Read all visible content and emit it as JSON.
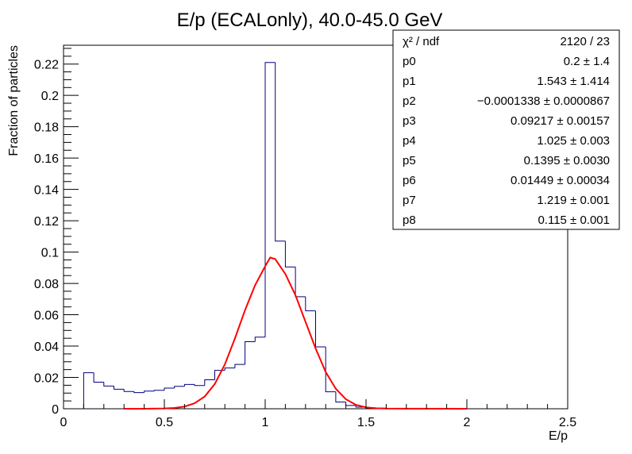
{
  "chart_data": {
    "type": "bar",
    "title": "E/p (ECALonly), 40.0-45.0 GeV",
    "xlabel": "E/p",
    "ylabel": "Fraction of particles",
    "xlim": [
      0,
      2.5
    ],
    "ylim": [
      0,
      0.232
    ],
    "grid": false,
    "legend": "none",
    "x_ticks": [
      "0",
      "0.5",
      "1",
      "1.5",
      "2",
      "2.5"
    ],
    "y_ticks": [
      "0",
      "0.02",
      "0.04",
      "0.06",
      "0.08",
      "0.1",
      "0.12",
      "0.14",
      "0.16",
      "0.18",
      "0.2",
      "0.22"
    ],
    "histogram": {
      "name": "histogram",
      "color": "#000080",
      "bin_edges": [
        0.1,
        0.15,
        0.2,
        0.25,
        0.3,
        0.35,
        0.4,
        0.45,
        0.5,
        0.55,
        0.6,
        0.65,
        0.7,
        0.75,
        0.8,
        0.85,
        0.9,
        0.95,
        1.0,
        1.05,
        1.1,
        1.15,
        1.2,
        1.25,
        1.3,
        1.35,
        1.4,
        1.45,
        1.5,
        1.55,
        1.6,
        1.65,
        1.7,
        1.75,
        1.8,
        1.85,
        1.9,
        1.95,
        2.0
      ],
      "values": [
        0.023,
        0.017,
        0.0145,
        0.0125,
        0.011,
        0.0103,
        0.0113,
        0.0118,
        0.0132,
        0.0143,
        0.0155,
        0.0148,
        0.0185,
        0.0245,
        0.026,
        0.0283,
        0.0428,
        0.0457,
        0.221,
        0.107,
        0.0905,
        0.0715,
        0.0625,
        0.0395,
        0.0108,
        0.0043,
        0.0021,
        0.001,
        0.0006,
        0.0004,
        0.0002,
        0.0001,
        5e-05,
        0,
        0,
        0,
        0,
        0
      ]
    },
    "fit": {
      "name": "fit",
      "color": "#ff0000",
      "x": [
        0.3,
        0.4,
        0.5,
        0.55,
        0.6,
        0.65,
        0.7,
        0.75,
        0.8,
        0.85,
        0.9,
        0.95,
        1.0,
        1.025,
        1.05,
        1.1,
        1.15,
        1.2,
        1.25,
        1.3,
        1.35,
        1.4,
        1.45,
        1.5,
        1.55,
        1.6,
        2.0
      ],
      "y": [
        0,
        0,
        0.0002,
        0.0005,
        0.0014,
        0.0035,
        0.0078,
        0.0158,
        0.0283,
        0.0449,
        0.0629,
        0.0789,
        0.091,
        0.0965,
        0.0955,
        0.086,
        0.0725,
        0.0555,
        0.0385,
        0.0235,
        0.0128,
        0.0061,
        0.0025,
        0.0009,
        0.0003,
        0.0001,
        0
      ]
    },
    "stats_box": {
      "rows": [
        {
          "label": "χ² / ndf",
          "value": "2120 / 23"
        },
        {
          "label": "p0",
          "value": "0.2 ± 1.4"
        },
        {
          "label": "p1",
          "value": "1.543 ± 1.414"
        },
        {
          "label": "p2",
          "value": "−0.0001338 ± 0.0000867"
        },
        {
          "label": "p3",
          "value": "0.09217 ± 0.00157"
        },
        {
          "label": "p4",
          "value": "1.025 ± 0.003"
        },
        {
          "label": "p5",
          "value": "0.1395 ± 0.0030"
        },
        {
          "label": "p6",
          "value": "0.01449 ± 0.00034"
        },
        {
          "label": "p7",
          "value": "1.219 ± 0.001"
        },
        {
          "label": "p8",
          "value": "0.115 ± 0.001"
        }
      ]
    }
  }
}
